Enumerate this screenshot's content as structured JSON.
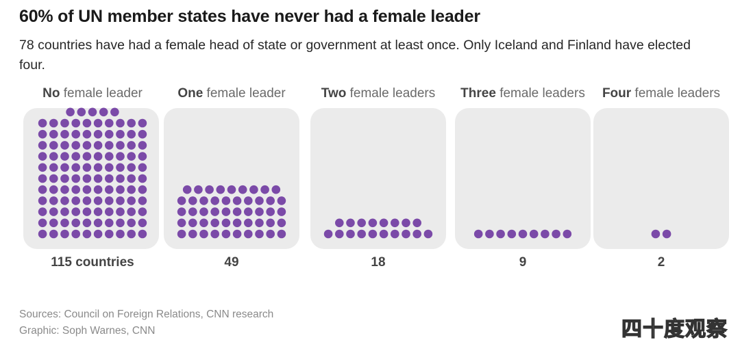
{
  "title": "60% of UN member states have never had a female leader",
  "subtitle": "78 countries have had a female head of state or government at least once. Only Iceland and Finland have elected four.",
  "chart_data": {
    "type": "waffle",
    "dot_color": "#7b4aa8",
    "panel_color": "#ebebeb",
    "panels": [
      {
        "label_bold": "No",
        "label_rest": " female leader",
        "value": 115,
        "value_label": "115 countries"
      },
      {
        "label_bold": "One",
        "label_rest": " female leader",
        "value": 49,
        "value_label": "49"
      },
      {
        "label_bold": "Two",
        "label_rest": " female leaders",
        "value": 18,
        "value_label": "18"
      },
      {
        "label_bold": "Three",
        "label_rest": " female leaders",
        "value": 9,
        "value_label": "9"
      },
      {
        "label_bold": "Four",
        "label_rest": " female leaders",
        "value": 2,
        "value_label": "2"
      }
    ]
  },
  "footer": {
    "sources": "Sources: Council on Foreign Relations, CNN research",
    "graphic": "Graphic: Soph Warnes, CNN"
  },
  "watermark": "四十度观察"
}
